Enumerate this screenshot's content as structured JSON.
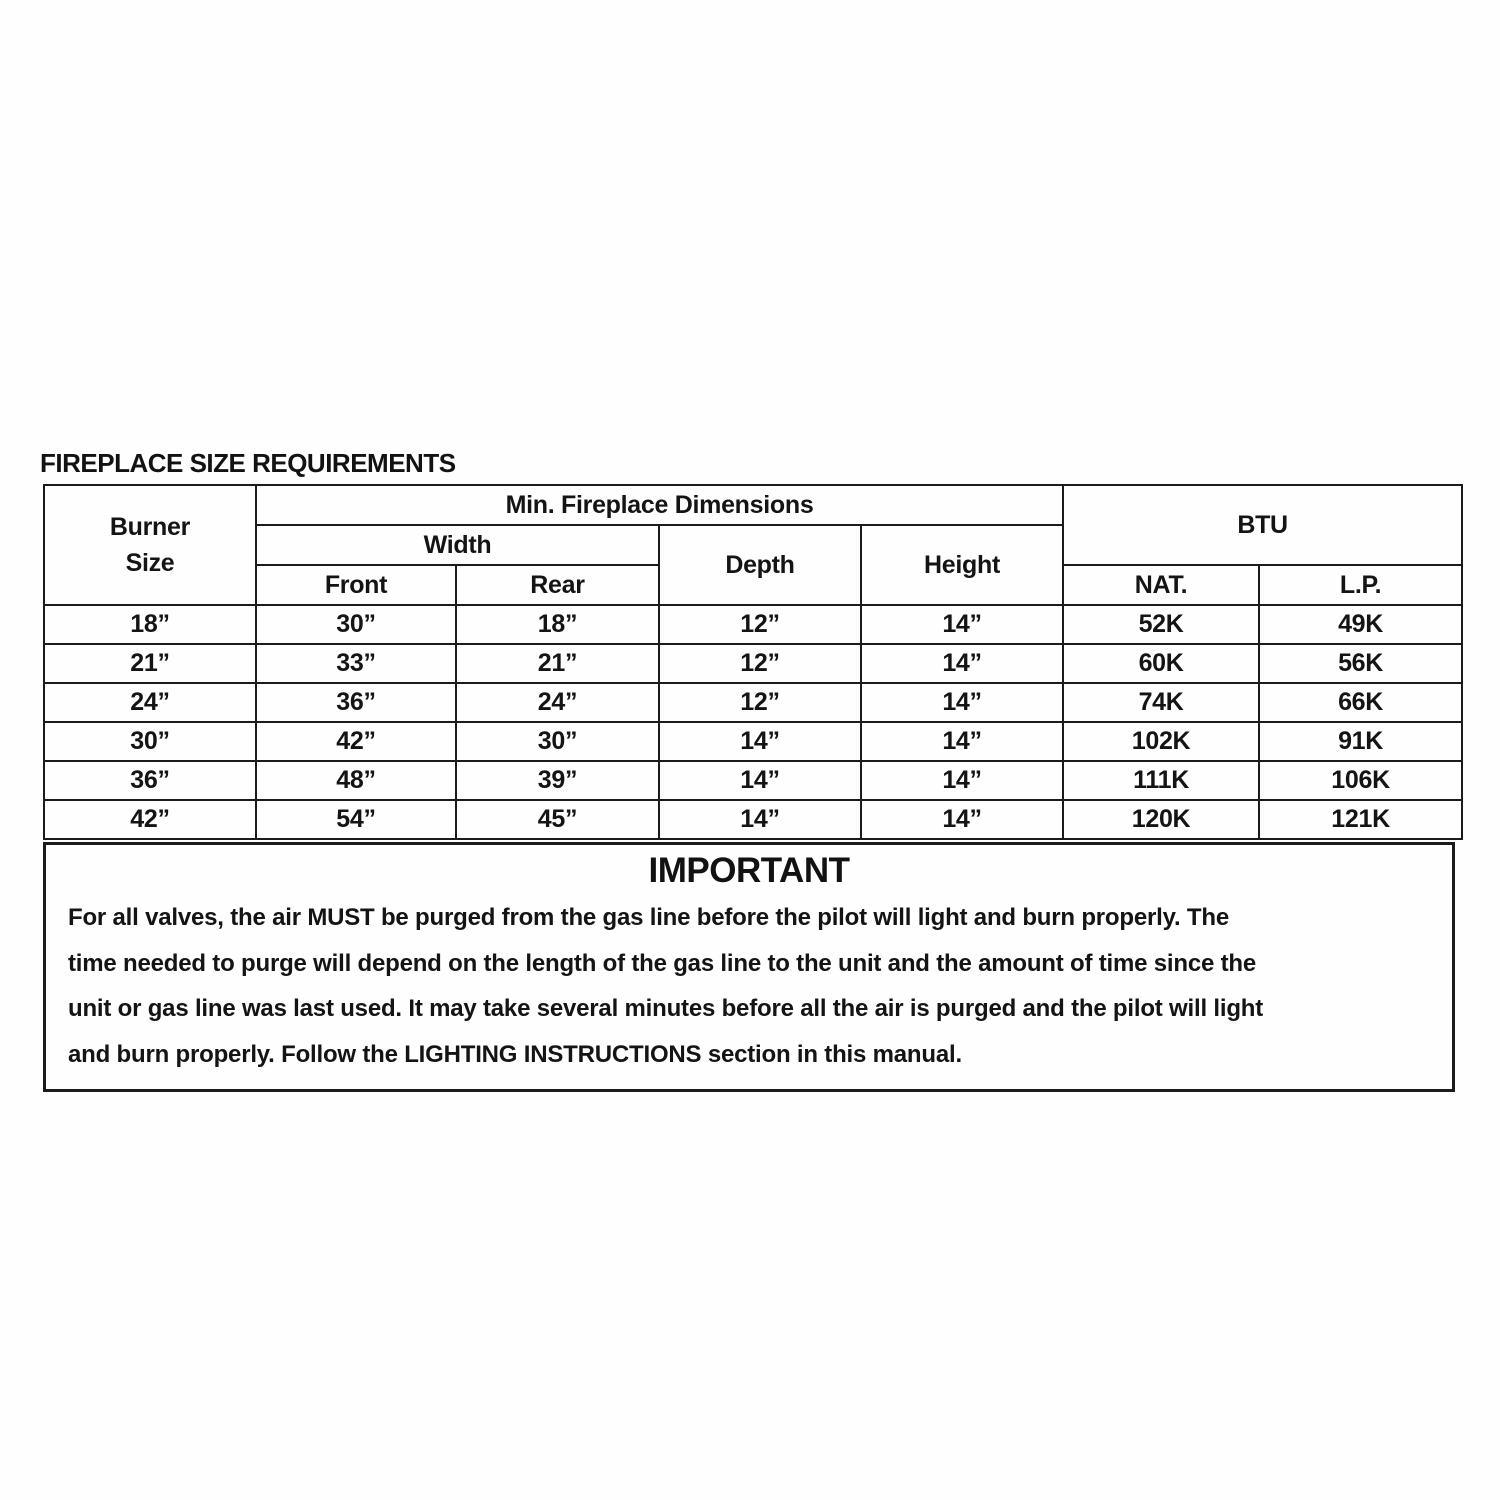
{
  "page": {
    "title": "FIREPLACE SIZE REQUIREMENTS"
  },
  "table": {
    "header": {
      "burner_size": "Burner\nSize",
      "min_dims": "Min. Fireplace Dimensions",
      "width": "Width",
      "front": "Front",
      "rear": "Rear",
      "depth": "Depth",
      "height": "Height",
      "btu": "BTU",
      "nat": "NAT.",
      "lp": "L.P."
    },
    "column_keys": [
      "burner",
      "front",
      "rear",
      "depth",
      "height",
      "nat",
      "lp"
    ],
    "rows": [
      {
        "burner": "18”",
        "front": "30”",
        "rear": "18”",
        "depth": "12”",
        "height": "14”",
        "nat": "52K",
        "lp": "49K"
      },
      {
        "burner": "21”",
        "front": "33”",
        "rear": "21”",
        "depth": "12”",
        "height": "14”",
        "nat": "60K",
        "lp": "56K"
      },
      {
        "burner": "24”",
        "front": "36”",
        "rear": "24”",
        "depth": "12”",
        "height": "14”",
        "nat": "74K",
        "lp": "66K"
      },
      {
        "burner": "30”",
        "front": "42”",
        "rear": "30”",
        "depth": "14”",
        "height": "14”",
        "nat": "102K",
        "lp": "91K"
      },
      {
        "burner": "36”",
        "front": "48”",
        "rear": "39”",
        "depth": "14”",
        "height": "14”",
        "nat": "111K",
        "lp": "106K"
      },
      {
        "burner": "42”",
        "front": "54”",
        "rear": "45”",
        "depth": "14”",
        "height": "14”",
        "nat": "120K",
        "lp": "121K"
      }
    ]
  },
  "important": {
    "heading": "IMPORTANT",
    "body": "For all valves, the air MUST be purged from the gas line before the pilot will light and burn properly.  The\ntime needed to purge will depend on the length of the gas line to the unit and the amount of time since the\nunit or gas line was last used.  It may take several minutes before all the air is purged and the pilot will light\nand burn properly.  Follow the LIGHTING INSTRUCTIONS section in this manual."
  }
}
